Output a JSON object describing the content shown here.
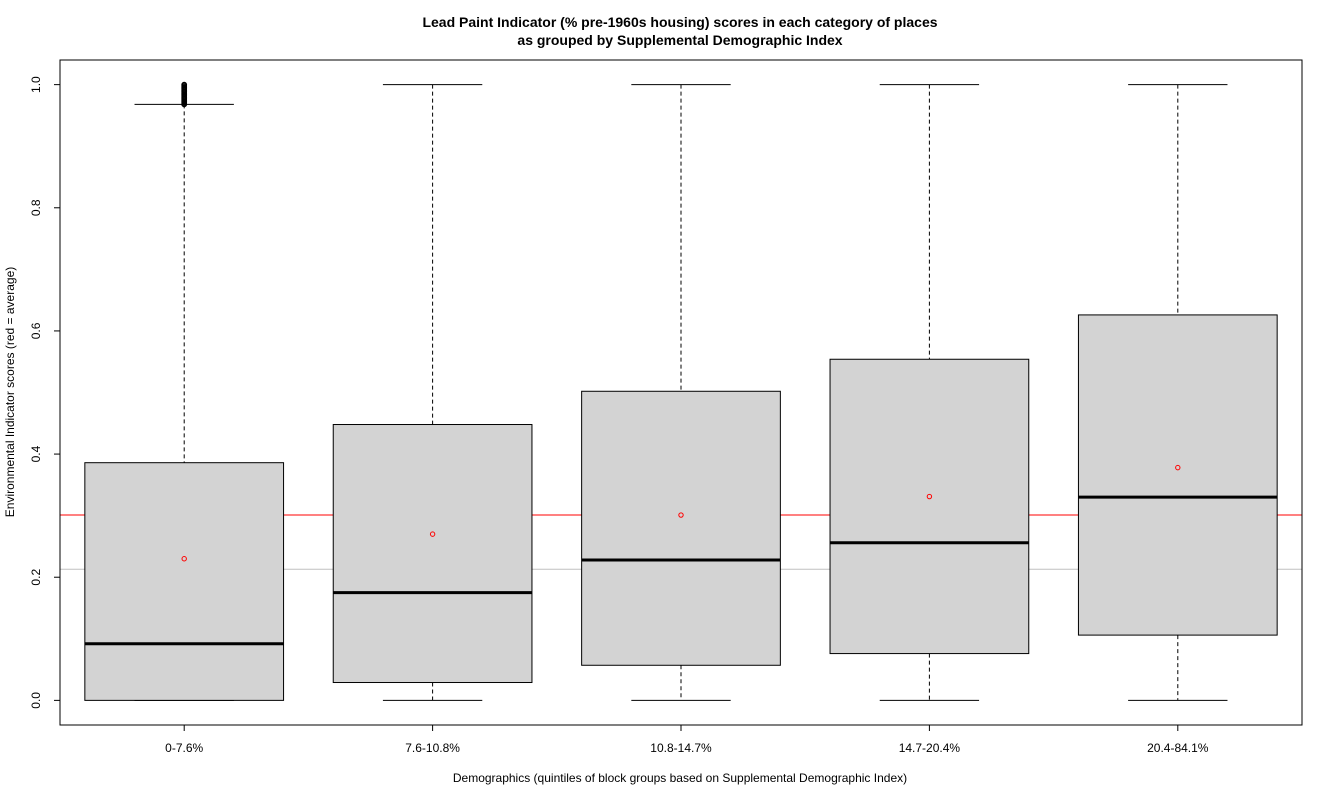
{
  "chart_data": {
    "type": "boxplot",
    "title": "Lead Paint Indicator (% pre-1960s housing) scores in each category of places",
    "subtitle": "as grouped by Supplemental Demographic Index",
    "xlabel": "Demographics (quintiles of block groups based on Supplemental Demographic Index)",
    "ylabel": "Environmental Indicator scores (red = average)",
    "ylim": [
      -0.04,
      1.04
    ],
    "yticks": [
      "0.0",
      "0.2",
      "0.4",
      "0.6",
      "0.8",
      "1.0"
    ],
    "ytick_values": [
      0.0,
      0.2,
      0.4,
      0.6,
      0.8,
      1.0
    ],
    "categories": [
      "0-7.6%",
      "7.6-10.8%",
      "10.8-14.7%",
      "14.7-20.4%",
      "20.4-84.1%"
    ],
    "boxes": [
      {
        "whisker_low": 0.0,
        "q1": 0.0,
        "median": 0.092,
        "q3": 0.386,
        "whisker_high": 0.968,
        "mean": 0.23,
        "outliers_from": 0.968,
        "outliers_to": 1.0
      },
      {
        "whisker_low": 0.0,
        "q1": 0.029,
        "median": 0.175,
        "q3": 0.448,
        "whisker_high": 1.0,
        "mean": 0.27
      },
      {
        "whisker_low": 0.0,
        "q1": 0.057,
        "median": 0.228,
        "q3": 0.502,
        "whisker_high": 1.0,
        "mean": 0.301
      },
      {
        "whisker_low": 0.0,
        "q1": 0.076,
        "median": 0.256,
        "q3": 0.554,
        "whisker_high": 1.0,
        "mean": 0.331
      },
      {
        "whisker_low": 0.0,
        "q1": 0.106,
        "median": 0.33,
        "q3": 0.626,
        "whisker_high": 1.0,
        "mean": 0.378
      }
    ],
    "reference_lines": [
      {
        "value": 0.301,
        "color": "#ff0000"
      },
      {
        "value": 0.213,
        "color": "#c0c0c0"
      }
    ],
    "colors": {
      "box_fill": "#d3d3d3",
      "mean_marker": "#ff0000",
      "stroke": "#000000"
    },
    "grid": false
  }
}
